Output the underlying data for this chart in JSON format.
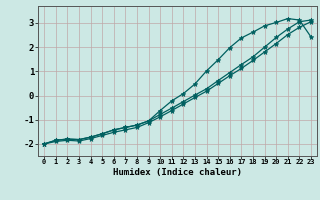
{
  "xlabel": "Humidex (Indice chaleur)",
  "ylabel": "",
  "background_color": "#cce8e4",
  "grid_color": "#c0a8a8",
  "line_color": "#006060",
  "xlim": [
    -0.5,
    23.5
  ],
  "ylim": [
    -2.5,
    3.7
  ],
  "xticks": [
    0,
    1,
    2,
    3,
    4,
    5,
    6,
    7,
    8,
    9,
    10,
    11,
    12,
    13,
    14,
    15,
    16,
    17,
    18,
    19,
    20,
    21,
    22,
    23
  ],
  "yticks": [
    -2,
    -1,
    0,
    1,
    2,
    3
  ],
  "x": [
    0,
    1,
    2,
    3,
    4,
    5,
    6,
    7,
    8,
    9,
    10,
    11,
    12,
    13,
    14,
    15,
    16,
    17,
    18,
    19,
    20,
    21,
    22,
    23
  ],
  "line1": [
    -2.0,
    -1.9,
    -1.85,
    -1.88,
    -1.78,
    -1.65,
    -1.52,
    -1.42,
    -1.32,
    -1.12,
    -0.88,
    -0.62,
    -0.35,
    -0.08,
    0.18,
    0.5,
    0.82,
    1.12,
    1.45,
    1.8,
    2.15,
    2.52,
    2.82,
    3.05
  ],
  "line2": [
    -2.0,
    -1.85,
    -1.8,
    -1.82,
    -1.72,
    -1.58,
    -1.42,
    -1.32,
    -1.22,
    -1.05,
    -0.78,
    -0.52,
    -0.25,
    0.02,
    0.28,
    0.62,
    0.95,
    1.28,
    1.6,
    2.0,
    2.4,
    2.75,
    3.05,
    3.12
  ],
  "line3": [
    -2.0,
    -1.85,
    -1.8,
    -1.82,
    -1.72,
    -1.58,
    -1.42,
    -1.32,
    -1.22,
    -1.05,
    -0.62,
    -0.22,
    0.08,
    0.48,
    1.02,
    1.48,
    1.98,
    2.38,
    2.62,
    2.88,
    3.02,
    3.18,
    3.12,
    2.42
  ]
}
